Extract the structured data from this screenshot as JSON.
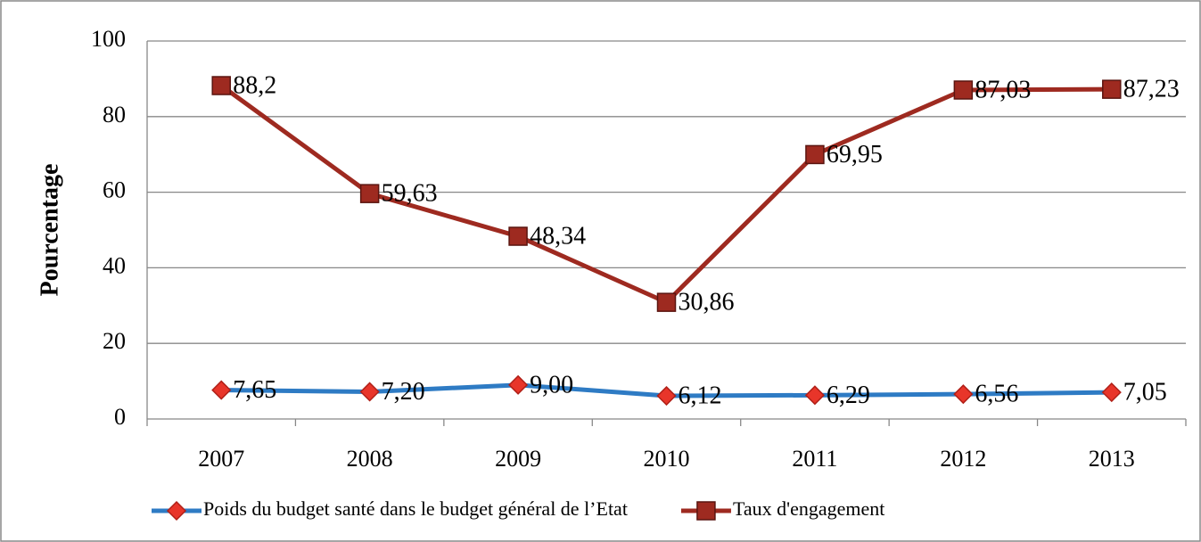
{
  "chart_data": {
    "type": "line",
    "y_label": "Pourcentage",
    "categories": [
      "2007",
      "2008",
      "2009",
      "2010",
      "2011",
      "2012",
      "2013"
    ],
    "series": [
      {
        "name": "Poids du budget santé dans le budget général de l’Etat",
        "color": "#2e7bc4",
        "marker": "diamond",
        "marker_color": "#e8352a",
        "values": [
          7.65,
          7.2,
          9.0,
          6.12,
          6.29,
          6.56,
          7.05
        ],
        "value_labels": [
          "7,65",
          "7,20",
          "9,00",
          "6,12",
          "6,29",
          "6,56",
          "7,05"
        ]
      },
      {
        "name": "Taux d'engagement",
        "color": "#9e2a20",
        "marker": "square",
        "marker_color": "#9e2a20",
        "values": [
          88.2,
          59.63,
          48.34,
          30.86,
          69.95,
          87.03,
          87.23
        ],
        "value_labels": [
          "88,2",
          "59,63",
          "48,34",
          "30,86",
          "69,95",
          "87,03",
          "87,23"
        ]
      }
    ],
    "ylim": [
      0,
      100
    ],
    "yticks": [
      0,
      20,
      40,
      60,
      80,
      100
    ],
    "grid": true,
    "legend": "bottom"
  }
}
